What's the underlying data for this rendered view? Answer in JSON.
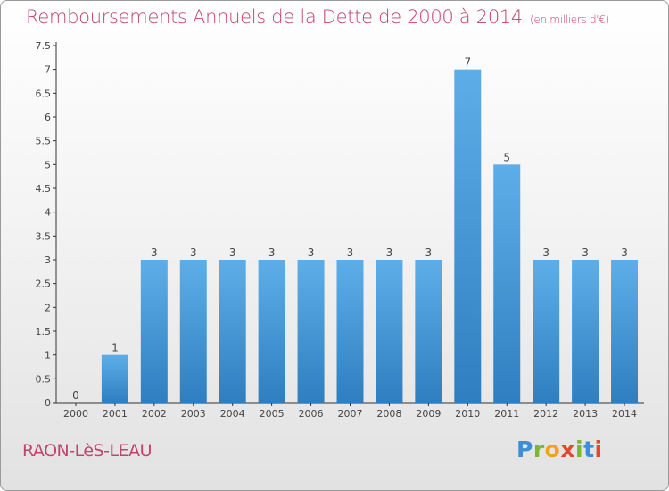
{
  "header": {
    "title": "Remboursements Annuels de la Dette de 2000 à 2014",
    "unit": "(en milliers d'€)"
  },
  "footer": {
    "town": "RAON-LèS-LEAU",
    "brand": [
      "P",
      "r",
      "o",
      "x",
      "i",
      "t",
      "i"
    ]
  },
  "colors": {
    "title": "#c1436d",
    "bar_top": "#5daee8",
    "bar_bottom": "#2f7fc0"
  },
  "chart_data": {
    "type": "bar",
    "title": "Remboursements Annuels de la Dette de 2000 à 2014",
    "xlabel": "",
    "ylabel": "",
    "categories": [
      "2000",
      "2001",
      "2002",
      "2003",
      "2004",
      "2005",
      "2006",
      "2007",
      "2008",
      "2009",
      "2010",
      "2011",
      "2012",
      "2013",
      "2014"
    ],
    "values": [
      0,
      1,
      3,
      3,
      3,
      3,
      3,
      3,
      3,
      3,
      7,
      5,
      3,
      3,
      3
    ],
    "value_labels": [
      "0",
      "1",
      "3",
      "3",
      "3",
      "3",
      "3",
      "3",
      "3",
      "3",
      "7",
      "5",
      "3",
      "3",
      "3"
    ],
    "ylim": [
      0,
      7.5
    ],
    "yticks": [
      0,
      0.5,
      1,
      1.5,
      2,
      2.5,
      3,
      3.5,
      4,
      4.5,
      5,
      5.5,
      6,
      6.5,
      7,
      7.5
    ],
    "ytick_labels": [
      "0",
      "0.5",
      "1",
      "1.5",
      "2",
      "2.5",
      "3",
      "3.5",
      "4",
      "4.5",
      "5",
      "5.5",
      "6",
      "6.5",
      "7",
      "7.5"
    ],
    "grid": false,
    "legend": "none"
  }
}
